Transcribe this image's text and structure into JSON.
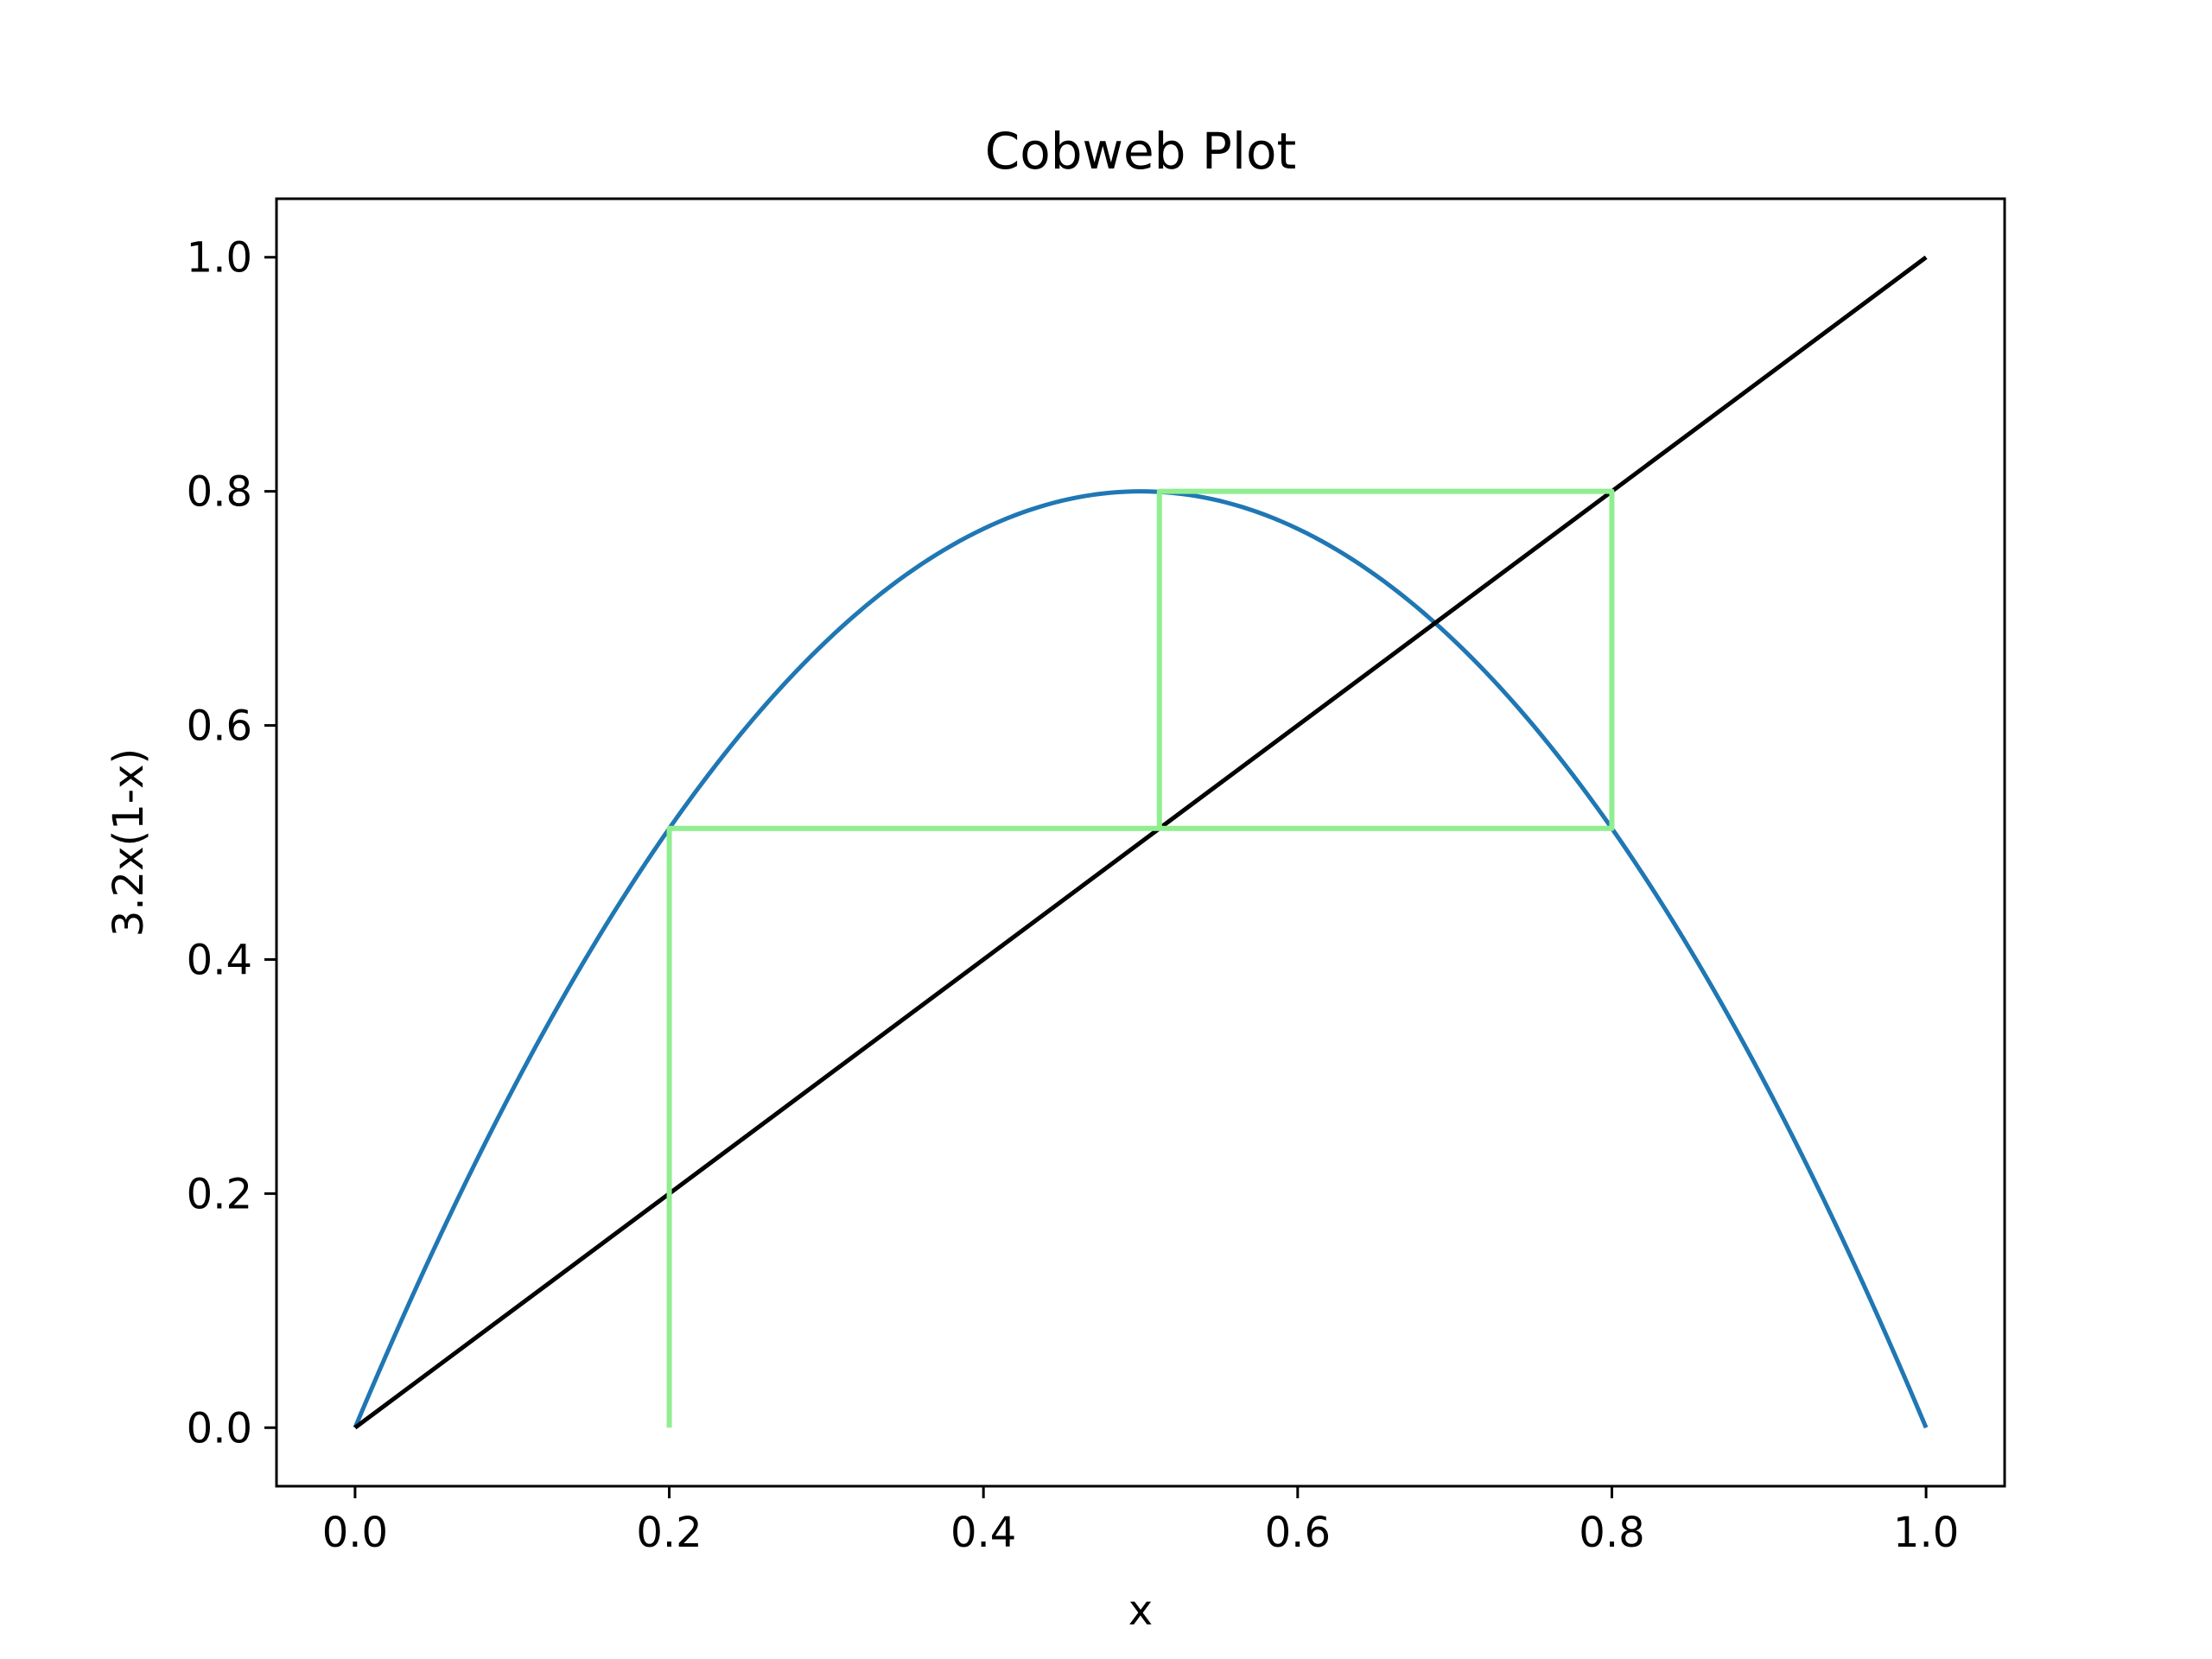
{
  "chart_data": {
    "type": "line",
    "title": "Cobweb Plot",
    "xlabel": "x",
    "ylabel": "3.2x(1-x)",
    "xlim": [
      -0.05,
      1.05
    ],
    "ylim": [
      -0.05,
      1.05
    ],
    "grid": false,
    "x_ticks": [
      "0.0",
      "0.2",
      "0.4",
      "0.6",
      "0.8",
      "1.0"
    ],
    "y_ticks": [
      "0.0",
      "0.2",
      "0.4",
      "0.6",
      "0.8",
      "1.0"
    ],
    "series": [
      {
        "function": "3.2x(1-x)",
        "r": 3.2,
        "x_range": [
          0,
          1
        ],
        "color": "#1f77b4"
      },
      {
        "function": "y = x",
        "x": [
          0,
          1
        ],
        "y": [
          0,
          1
        ],
        "color": "#000000"
      },
      {
        "x": [
          0.2,
          0.2,
          0.512,
          0.512,
          0.8,
          0.8,
          0.512
        ],
        "y": [
          0.0,
          0.512,
          0.512,
          0.8,
          0.8,
          0.512,
          0.512
        ],
        "color": "#90ee90"
      }
    ]
  }
}
